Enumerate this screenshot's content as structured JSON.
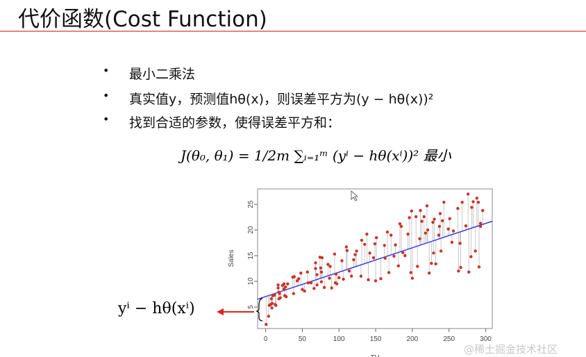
{
  "slide": {
    "title": "代价函数(Cost Function)",
    "bullets": [
      {
        "text": "最小二乘法"
      },
      {
        "text": "真实值y，预测值hθ(x)，则误差平方为(y − hθ(x))²"
      },
      {
        "text": "找到合适的参数，使得误差平方和："
      }
    ],
    "formula": "J(θ₀, θ₁) = 1/2m ∑ᵢ₌₁ᵐ (yⁱ − hθ(xⁱ))² 最小",
    "annotation": "yⁱ − hθ(xⁱ)",
    "watermark": "@稀土掘金技术社区"
  },
  "chart_data": {
    "type": "scatter",
    "xlabel": "TV",
    "ylabel": "Sales",
    "xlim": [
      -11,
      309
    ],
    "ylim": [
      0.8,
      28
    ],
    "xticks": [
      0,
      50,
      100,
      150,
      200,
      250,
      300
    ],
    "yticks": [
      5,
      10,
      15,
      20,
      25
    ],
    "point_color": "#c8352b",
    "line_color": "#3a3ae0",
    "residual_color": "#bbbbbb",
    "fit_line": {
      "intercept": 7.03,
      "slope": 0.0475
    },
    "points": [
      [
        0.7,
        1.6
      ],
      [
        4,
        3.2
      ],
      [
        5,
        5.3
      ],
      [
        7,
        5.5
      ],
      [
        8,
        6.6
      ],
      [
        8.5,
        4.8
      ],
      [
        9,
        5.7
      ],
      [
        10,
        7.2
      ],
      [
        12,
        7.3
      ],
      [
        13,
        5.5
      ],
      [
        14,
        5.3
      ],
      [
        17,
        8.7
      ],
      [
        17,
        9.3
      ],
      [
        18,
        7.9
      ],
      [
        18,
        6.6
      ],
      [
        19,
        7.6
      ],
      [
        20,
        6.8
      ],
      [
        23,
        9.2
      ],
      [
        25,
        8.5
      ],
      [
        25,
        9.5
      ],
      [
        26,
        7.2
      ],
      [
        27,
        8.9
      ],
      [
        28,
        7.0
      ],
      [
        30,
        9.5
      ],
      [
        37,
        10.8
      ],
      [
        38,
        7.6
      ],
      [
        39,
        10.9
      ],
      [
        43,
        10.1
      ],
      [
        45,
        10.5
      ],
      [
        48,
        11.6
      ],
      [
        50,
        8.4
      ],
      [
        53,
        8.1
      ],
      [
        57,
        11.8
      ],
      [
        58,
        9.7
      ],
      [
        62,
        9.7
      ],
      [
        66,
        8.6
      ],
      [
        68,
        12.5
      ],
      [
        68,
        13.6
      ],
      [
        70,
        9.3
      ],
      [
        70,
        11.3
      ],
      [
        74,
        14.7
      ],
      [
        75,
        12.6
      ],
      [
        76,
        11.8
      ],
      [
        76,
        9.9
      ],
      [
        77,
        14.6
      ],
      [
        80,
        8.8
      ],
      [
        85,
        13.3
      ],
      [
        87,
        10.6
      ],
      [
        88,
        12.9
      ],
      [
        90,
        8.7
      ],
      [
        94,
        15.3
      ],
      [
        95,
        9.7
      ],
      [
        96,
        11.4
      ],
      [
        97,
        9.5
      ],
      [
        100,
        10.7
      ],
      [
        104,
        14.0
      ],
      [
        106,
        10.4
      ],
      [
        110,
        16.7
      ],
      [
        111,
        16.0
      ],
      [
        114,
        12.0
      ],
      [
        117,
        11.0
      ],
      [
        120,
        14.2
      ],
      [
        122,
        15.2
      ],
      [
        124,
        15.9
      ],
      [
        130,
        11.0
      ],
      [
        131,
        18.0
      ],
      [
        135,
        17.2
      ],
      [
        138,
        19.2
      ],
      [
        140,
        10.3
      ],
      [
        142,
        15.5
      ],
      [
        147,
        14.6
      ],
      [
        149,
        17.3
      ],
      [
        150,
        10.1
      ],
      [
        151,
        18.5
      ],
      [
        157,
        10.5
      ],
      [
        162,
        17.0
      ],
      [
        163,
        14.5
      ],
      [
        166,
        19.6
      ],
      [
        168,
        11.7
      ],
      [
        171,
        19.0
      ],
      [
        175,
        14.9
      ],
      [
        177,
        17.1
      ],
      [
        181,
        13.0
      ],
      [
        183,
        21.2
      ],
      [
        185,
        20.7
      ],
      [
        187,
        15.6
      ],
      [
        190,
        15.0
      ],
      [
        194,
        19.2
      ],
      [
        196,
        22.4
      ],
      [
        198,
        11.7
      ],
      [
        199,
        23.7
      ],
      [
        200,
        10.6
      ],
      [
        205,
        22.6
      ],
      [
        207,
        12.9
      ],
      [
        210,
        18.3
      ],
      [
        211,
        23.8
      ],
      [
        213,
        21.7
      ],
      [
        216,
        22.6
      ],
      [
        218,
        19.4
      ],
      [
        220,
        24.7
      ],
      [
        221,
        20.0
      ],
      [
        223,
        11.6
      ],
      [
        226,
        13.5
      ],
      [
        228,
        21.5
      ],
      [
        229,
        15.5
      ],
      [
        230,
        22.1
      ],
      [
        232,
        13.4
      ],
      [
        236,
        19.0
      ],
      [
        237,
        20.7
      ],
      [
        238,
        23.2
      ],
      [
        239,
        15.9
      ],
      [
        241,
        21.8
      ],
      [
        243,
        25.4
      ],
      [
        249,
        20.2
      ],
      [
        251,
        22.2
      ],
      [
        254,
        17.6
      ],
      [
        256,
        19.8
      ],
      [
        262,
        24.2
      ],
      [
        263,
        12.0
      ],
      [
        265,
        17.4
      ],
      [
        266,
        12.7
      ],
      [
        268,
        25.4
      ],
      [
        273,
        20.8
      ],
      [
        276,
        27.0
      ],
      [
        277,
        11.8
      ],
      [
        280,
        14.8
      ],
      [
        281,
        24.4
      ],
      [
        283,
        25.5
      ],
      [
        286,
        15.9
      ],
      [
        288,
        26.2
      ],
      [
        290,
        25.4
      ],
      [
        291,
        12.8
      ],
      [
        293,
        21.3
      ],
      [
        293,
        20.7
      ],
      [
        296,
        23.8
      ]
    ]
  }
}
